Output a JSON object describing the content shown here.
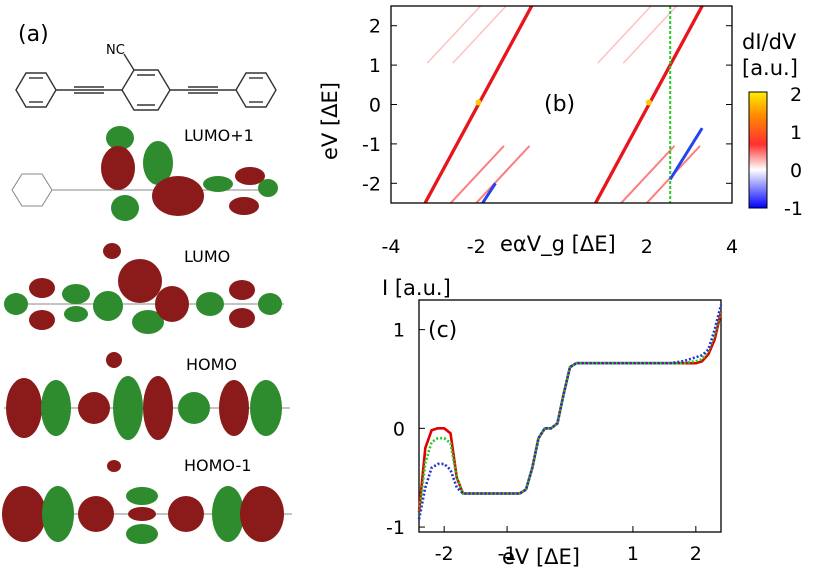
{
  "panel_a": {
    "label": "(a)",
    "substituent": "NC",
    "orbitals": [
      "LUMO+1",
      "LUMO",
      "HOMO",
      "HOMO-1"
    ]
  },
  "colors": {
    "lobe_red": "#8b1a1a",
    "lobe_green": "#2e8b2e",
    "trace_red": "#e00000",
    "trace_green": "#22cc22",
    "trace_blue": "#2233cc"
  },
  "chart_data": [
    {
      "type": "heatmap",
      "panel_label": "(b)",
      "xlabel": "eαV_g [ΔE]",
      "ylabel": "eV [ΔE]",
      "colorbar_label": [
        "dI/dV",
        "[a.u.]"
      ],
      "colorbar_ticks": [
        "2",
        "1",
        "0",
        "-1"
      ],
      "colorbar_range": [
        -1,
        2
      ],
      "xlim": [
        -4,
        4
      ],
      "ylim": [
        -2.5,
        2.5
      ],
      "x_ticks": [
        "-4",
        "-2",
        "2",
        "4"
      ],
      "y_ticks": [
        "2",
        "1",
        "0",
        "-1",
        "-2"
      ],
      "diamond_centers": [
        -1.95,
        2.05
      ],
      "grid": false
    },
    {
      "type": "line",
      "panel_label": "(c)",
      "ylabel": "I [a.u.]",
      "xlabel": "eV [ΔE]",
      "xlim": [
        -2.4,
        2.4
      ],
      "ylim": [
        -1.05,
        1.3
      ],
      "x_ticks": [
        "-2",
        "-1",
        "1",
        "2"
      ],
      "y_ticks": [
        "1",
        "0",
        "-1"
      ],
      "series": [
        {
          "color": "#e00000",
          "style": "solid",
          "x": [
            -2.4,
            -2.3,
            -2.2,
            -2.1,
            -2.0,
            -1.9,
            -1.8,
            -1.7,
            -1.6,
            -1.4,
            -1.2,
            -1.0,
            -0.8,
            -0.7,
            -0.6,
            -0.5,
            -0.4,
            -0.3,
            -0.2,
            -0.1,
            0.0,
            0.1,
            0.2,
            0.3,
            0.4,
            0.6,
            0.8,
            1.0,
            1.2,
            1.4,
            1.6,
            1.8,
            2.0,
            2.1,
            2.2,
            2.3,
            2.4
          ],
          "y": [
            -0.85,
            -0.2,
            -0.02,
            0.0,
            0.0,
            -0.05,
            -0.5,
            -0.66,
            -0.66,
            -0.66,
            -0.66,
            -0.66,
            -0.66,
            -0.62,
            -0.4,
            -0.1,
            0.0,
            0.0,
            0.05,
            0.35,
            0.62,
            0.66,
            0.66,
            0.66,
            0.66,
            0.66,
            0.66,
            0.66,
            0.66,
            0.66,
            0.66,
            0.66,
            0.66,
            0.68,
            0.75,
            0.9,
            1.18
          ]
        },
        {
          "color": "#22cc22",
          "style": "dotted",
          "x": [
            -2.4,
            -2.3,
            -2.2,
            -2.1,
            -2.0,
            -1.9,
            -1.8,
            -1.7,
            -1.6,
            -1.4,
            -1.2,
            -1.0,
            -0.8,
            -0.7,
            -0.6,
            -0.5,
            -0.4,
            -0.3,
            -0.2,
            -0.1,
            0.0,
            0.1,
            0.2,
            0.3,
            0.4,
            0.6,
            0.8,
            1.0,
            1.2,
            1.4,
            1.6,
            1.8,
            2.0,
            2.1,
            2.2,
            2.3,
            2.4
          ],
          "y": [
            -0.88,
            -0.35,
            -0.14,
            -0.1,
            -0.1,
            -0.15,
            -0.5,
            -0.66,
            -0.66,
            -0.66,
            -0.66,
            -0.66,
            -0.66,
            -0.62,
            -0.4,
            -0.1,
            0.0,
            0.0,
            0.05,
            0.35,
            0.62,
            0.66,
            0.66,
            0.66,
            0.66,
            0.66,
            0.66,
            0.66,
            0.66,
            0.66,
            0.66,
            0.66,
            0.68,
            0.7,
            0.78,
            0.95,
            1.2
          ]
        },
        {
          "color": "#2233cc",
          "style": "dotted",
          "x": [
            -2.4,
            -2.3,
            -2.2,
            -2.1,
            -2.0,
            -1.9,
            -1.8,
            -1.7,
            -1.6,
            -1.4,
            -1.2,
            -1.0,
            -0.8,
            -0.7,
            -0.6,
            -0.5,
            -0.4,
            -0.3,
            -0.2,
            -0.1,
            0.0,
            0.1,
            0.2,
            0.3,
            0.4,
            0.6,
            0.8,
            1.0,
            1.2,
            1.4,
            1.6,
            1.8,
            2.0,
            2.1,
            2.2,
            2.3,
            2.4
          ],
          "y": [
            -0.92,
            -0.6,
            -0.4,
            -0.36,
            -0.36,
            -0.42,
            -0.6,
            -0.66,
            -0.66,
            -0.66,
            -0.66,
            -0.66,
            -0.66,
            -0.62,
            -0.4,
            -0.1,
            0.0,
            0.0,
            0.05,
            0.35,
            0.62,
            0.66,
            0.66,
            0.66,
            0.66,
            0.66,
            0.66,
            0.66,
            0.66,
            0.66,
            0.66,
            0.68,
            0.72,
            0.74,
            0.8,
            1.0,
            1.25
          ]
        }
      ]
    }
  ]
}
